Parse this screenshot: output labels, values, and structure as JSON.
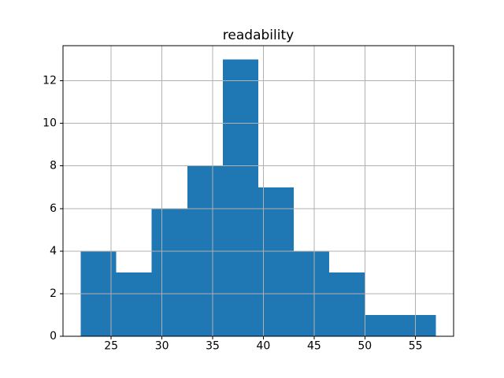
{
  "chart_data": {
    "type": "bar",
    "subtype": "histogram",
    "title": "readability",
    "xlabel": "",
    "ylabel": "",
    "bin_edges": [
      22,
      25.5,
      29,
      32.5,
      36,
      39.5,
      43,
      46.5,
      50,
      53.5,
      57
    ],
    "counts": [
      4,
      3,
      6,
      8,
      13,
      7,
      4,
      3,
      1,
      1
    ],
    "xticks": [
      25,
      30,
      35,
      40,
      45,
      50,
      55
    ],
    "yticks": [
      0,
      2,
      4,
      6,
      8,
      10,
      12
    ],
    "xlim": [
      20.25,
      58.75
    ],
    "ylim": [
      0,
      13.65
    ],
    "grid": true,
    "grid_over_bars": true,
    "legend_position": "none",
    "colors": {
      "bar": "#1f77b4",
      "grid": "#b0b0b0",
      "spine": "#000000",
      "tick": "#000000",
      "background": "#ffffff"
    }
  }
}
